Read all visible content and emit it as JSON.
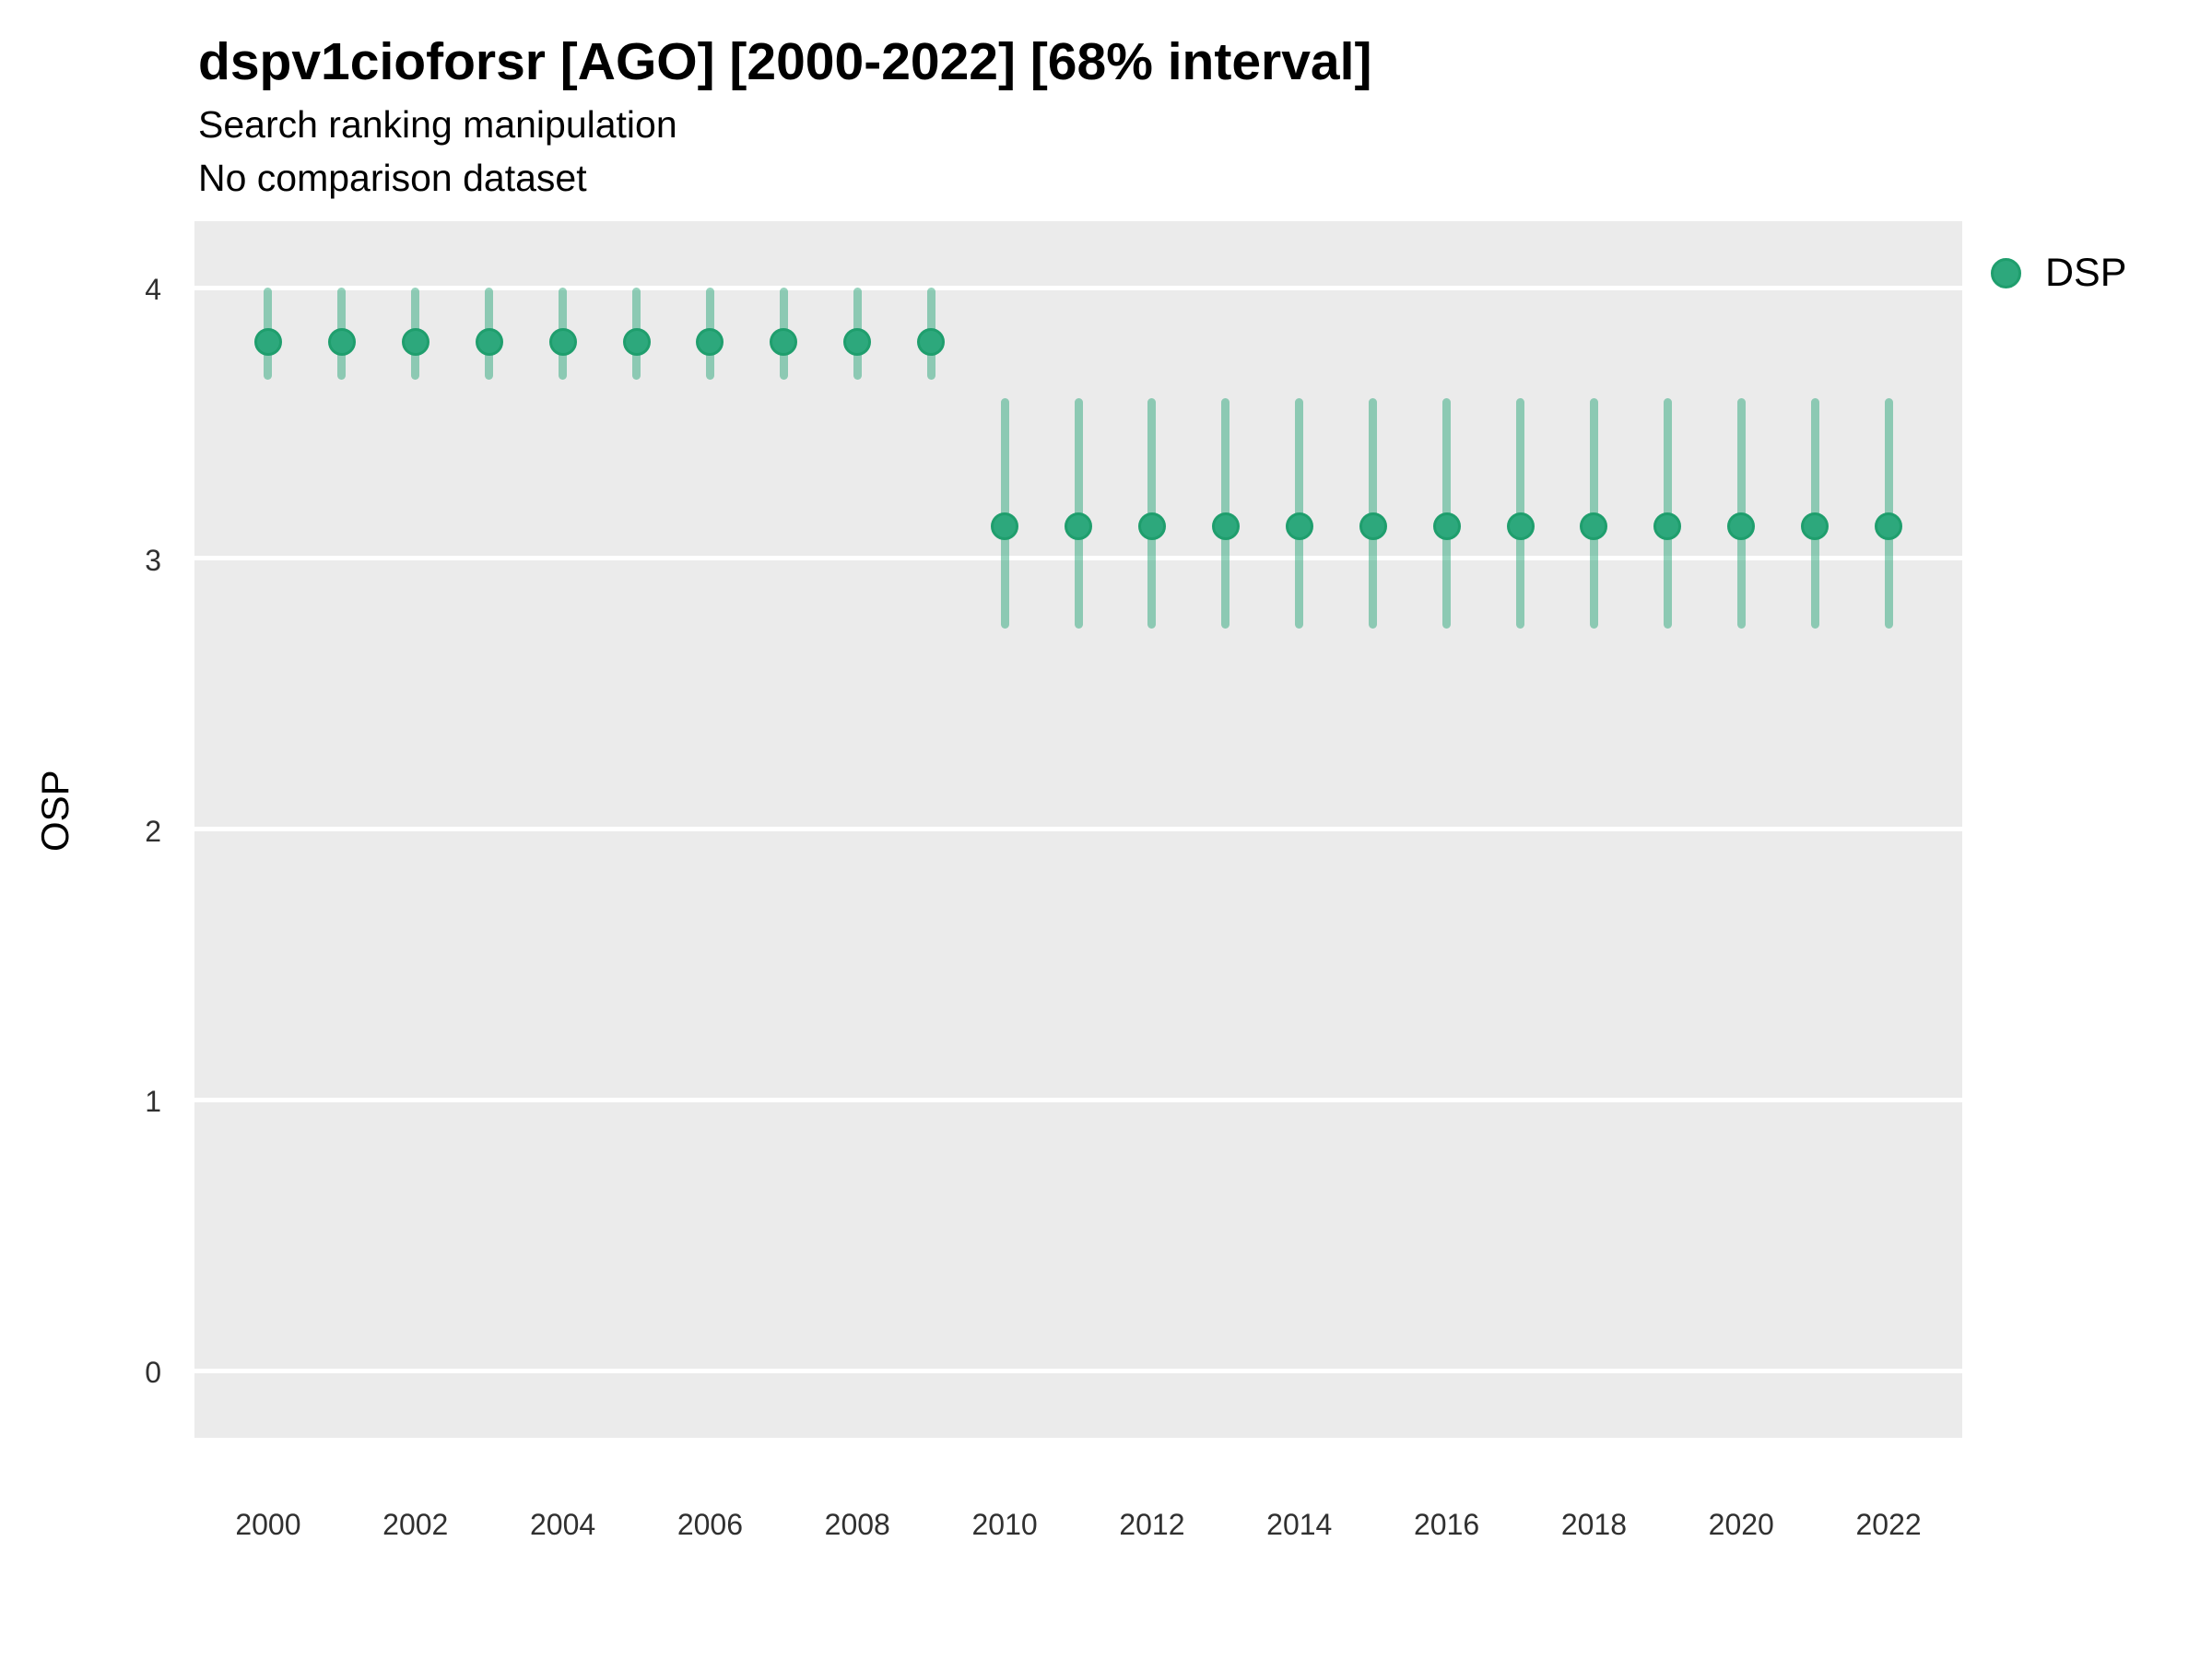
{
  "header": {
    "title": "dspv1cioforsr [AGO] [2000-2022] [68% interval]",
    "subtitle": "Search ranking manipulation",
    "note": "No comparison dataset"
  },
  "chart_data": {
    "type": "scatter",
    "title": "dspv1cioforsr [AGO] [2000-2022] [68% interval]",
    "subtitle": "Search ranking manipulation",
    "annotation": "No comparison dataset",
    "interval_label": "68% interval",
    "xlabel": "",
    "ylabel": "OSP",
    "legend_position": "right-top",
    "grid": "major-horizontal-only",
    "legend": [
      {
        "label": "DSP",
        "color": "#2DA87C"
      }
    ],
    "x": [
      2000,
      2001,
      2002,
      2003,
      2004,
      2005,
      2006,
      2007,
      2008,
      2009,
      2010,
      2011,
      2012,
      2013,
      2014,
      2015,
      2016,
      2017,
      2018,
      2019,
      2020,
      2021,
      2022
    ],
    "series": [
      {
        "name": "DSP",
        "est": [
          3.8,
          3.8,
          3.8,
          3.8,
          3.8,
          3.8,
          3.8,
          3.8,
          3.8,
          3.8,
          3.12,
          3.12,
          3.12,
          3.12,
          3.12,
          3.12,
          3.12,
          3.12,
          3.12,
          3.12,
          3.12,
          3.12,
          3.12
        ],
        "lo": [
          3.66,
          3.66,
          3.66,
          3.66,
          3.66,
          3.66,
          3.66,
          3.66,
          3.66,
          3.66,
          2.74,
          2.74,
          2.74,
          2.74,
          2.74,
          2.74,
          2.74,
          2.74,
          2.74,
          2.74,
          2.74,
          2.74,
          2.74
        ],
        "hi": [
          4.0,
          4.0,
          4.0,
          4.0,
          4.0,
          4.0,
          4.0,
          4.0,
          4.0,
          4.0,
          3.59,
          3.59,
          3.59,
          3.59,
          3.59,
          3.59,
          3.59,
          3.59,
          3.59,
          3.59,
          3.59,
          3.59,
          3.59
        ]
      }
    ],
    "yticks": [
      0,
      1,
      2,
      3,
      4
    ],
    "xticks": [
      2000,
      2002,
      2004,
      2006,
      2008,
      2010,
      2012,
      2014,
      2016,
      2018,
      2020,
      2022
    ],
    "ylim": [
      -0.25,
      4.25
    ],
    "xlim": [
      1999,
      2023
    ],
    "colors": {
      "point": "#2DA87C",
      "point_stroke": "#1F9E6D",
      "interval": "rgba(45,168,124,0.5)",
      "panel_bg": "#EBEBEB",
      "gridline": "#FFFFFF",
      "tick_text": "#303030"
    }
  }
}
